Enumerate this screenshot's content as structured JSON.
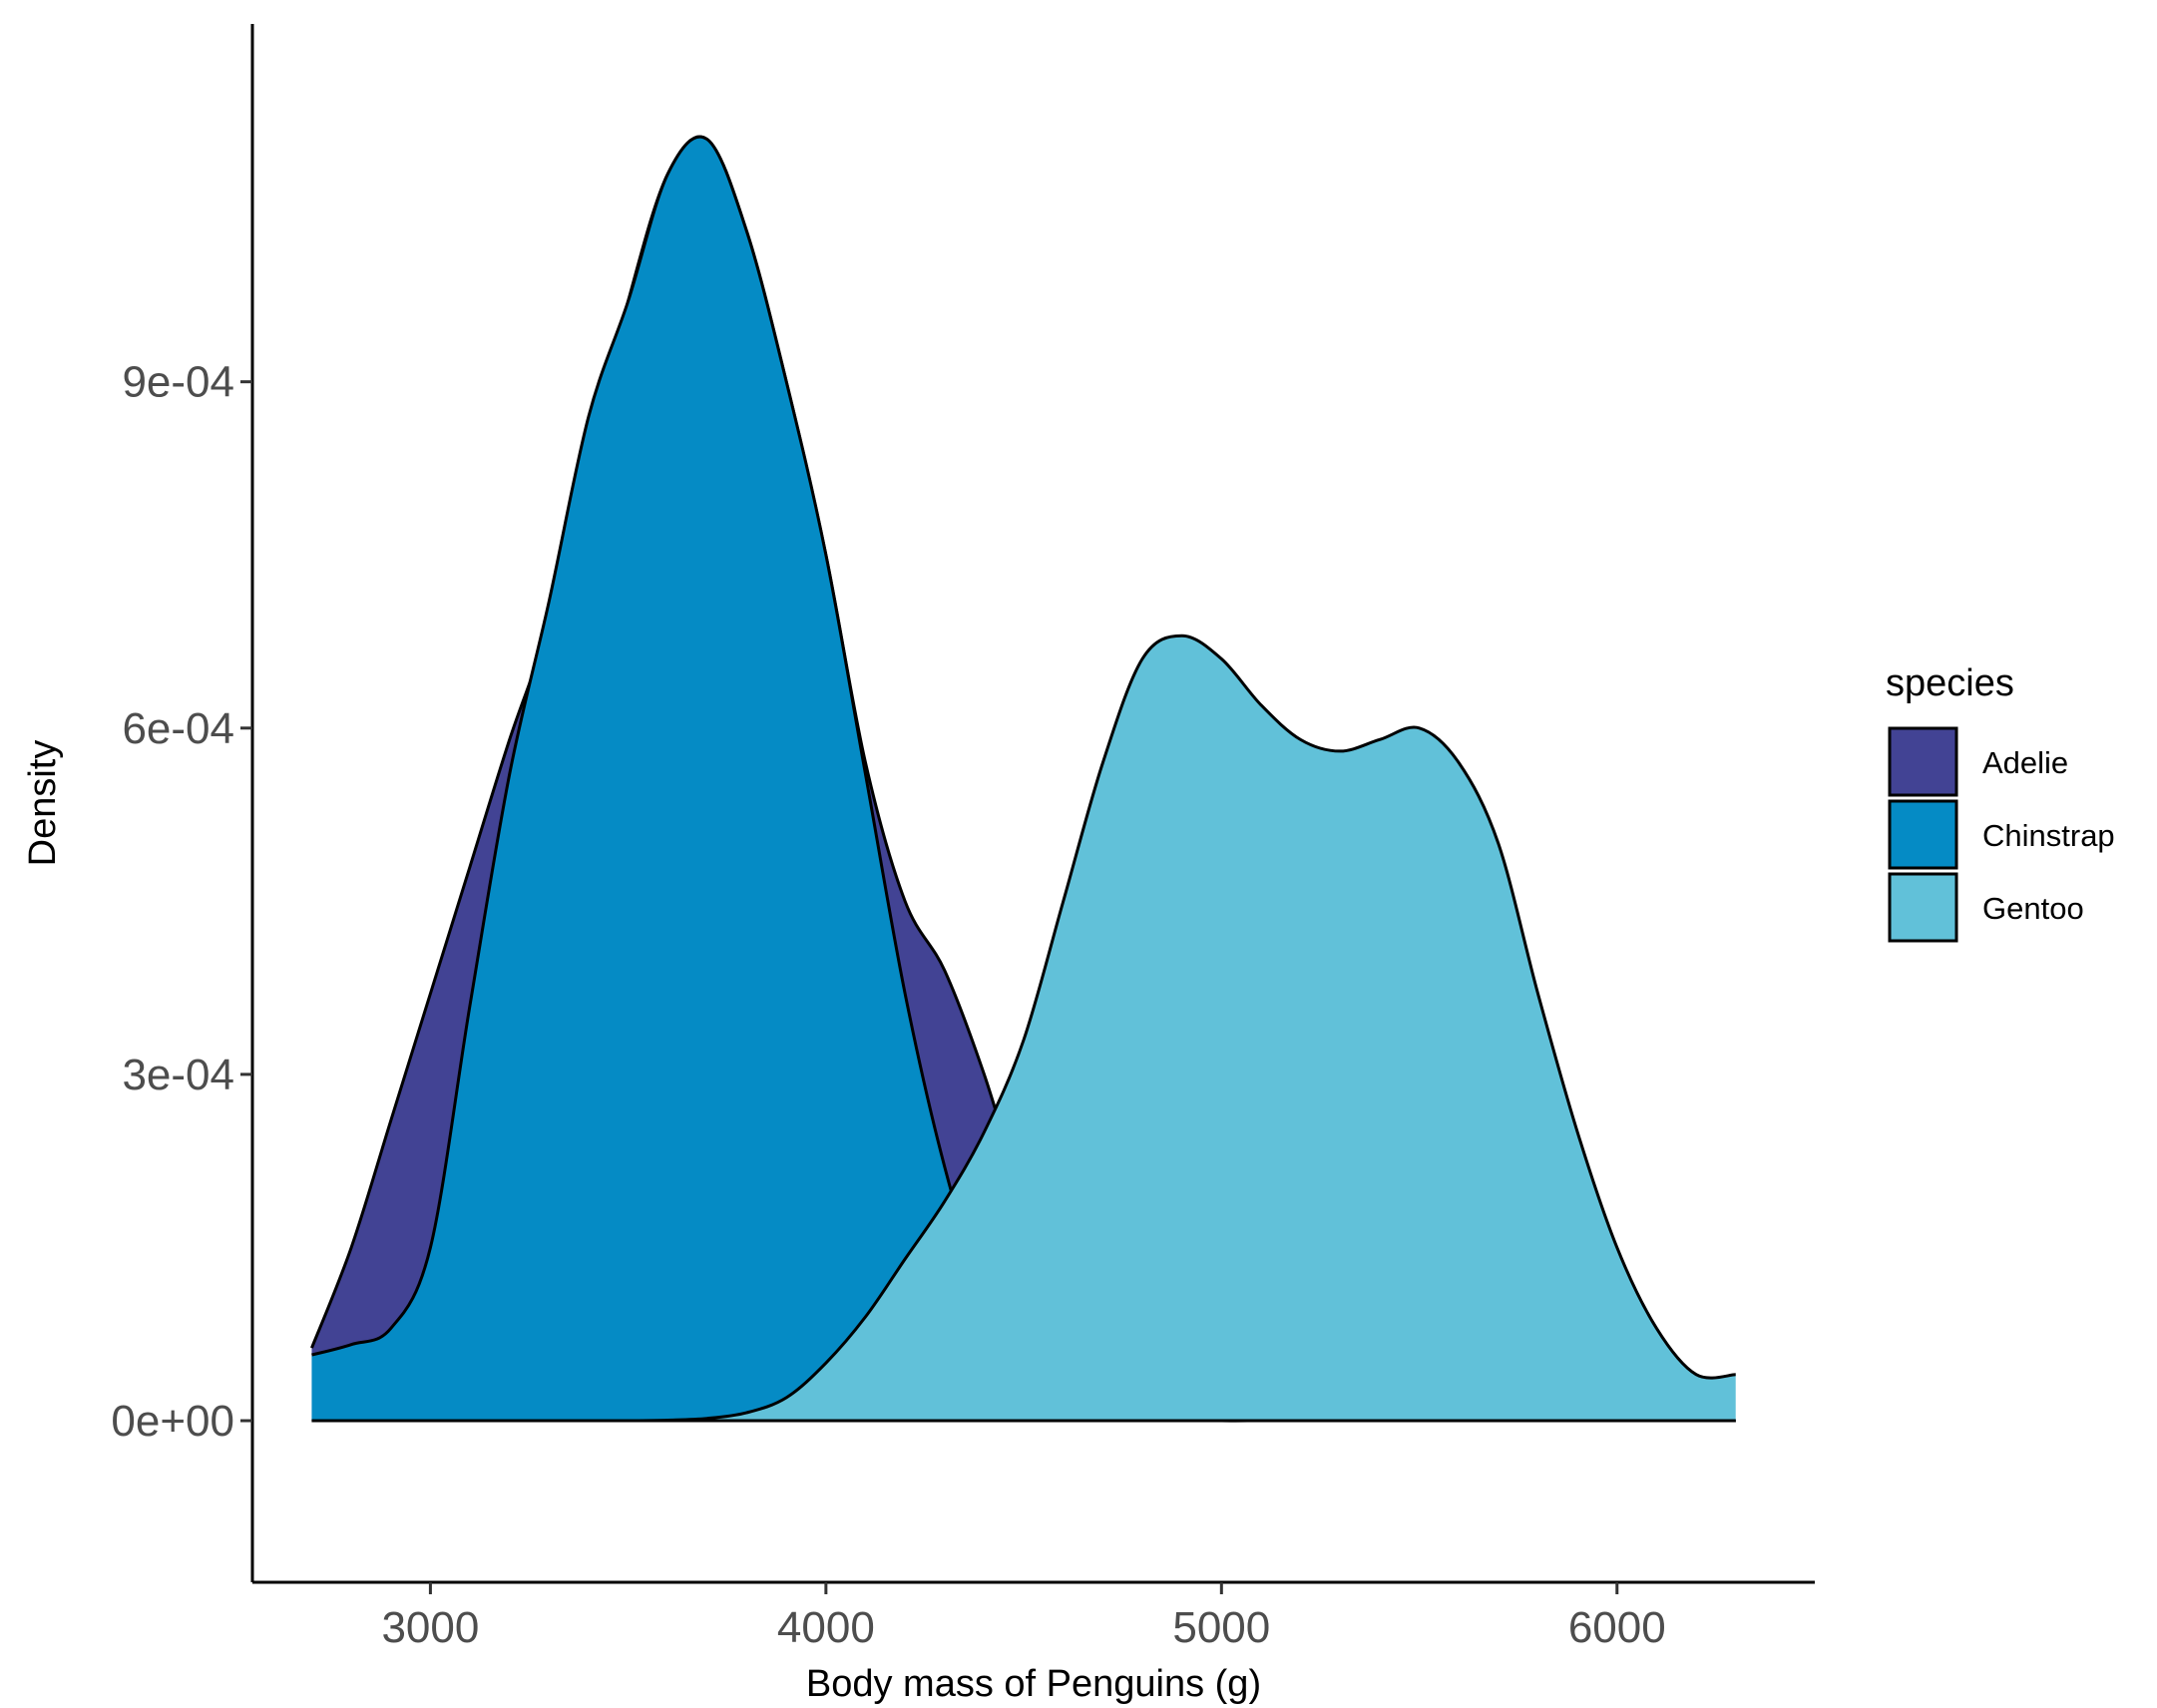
{
  "chart_data": {
    "type": "area",
    "subtype": "density",
    "title": "",
    "xlabel": "Body mass of Penguins (g)",
    "ylabel": "Density",
    "xlim": [
      2550,
      6500
    ],
    "ylim": [
      -0.00014,
      0.00121
    ],
    "x_ticks": [
      3000,
      4000,
      5000,
      6000
    ],
    "x_tick_labels": [
      "3000",
      "4000",
      "5000",
      "6000"
    ],
    "y_ticks": [
      0,
      0.0003,
      0.0006,
      0.0009
    ],
    "y_tick_labels": [
      "0e+00",
      "3e-04",
      "6e-04",
      "9e-04"
    ],
    "grid": false,
    "legend": {
      "title": "species",
      "position": "right"
    },
    "series": [
      {
        "name": "Adelie",
        "color": "#424394",
        "x": [
          2700,
          2800,
          2900,
          3000,
          3100,
          3200,
          3300,
          3400,
          3500,
          3600,
          3700,
          3800,
          3900,
          4000,
          4100,
          4200,
          4300,
          4400,
          4500,
          4600,
          4700,
          4800,
          4900,
          5000,
          5100,
          5200,
          5300,
          5400,
          5500,
          5600,
          5700,
          5800,
          5900,
          6000,
          6100,
          6200,
          6300
        ],
        "values": [
          6.3e-05,
          0.00015,
          0.00026,
          0.00037,
          0.00048,
          0.00059,
          0.00069,
          0.00083,
          0.00097,
          0.00108,
          0.00111,
          0.00103,
          0.0009,
          0.00075,
          0.00057,
          0.00045,
          0.00039,
          0.0003,
          0.00019,
          0.0001,
          4e-05,
          1.2e-05,
          3e-06,
          5e-07,
          1e-07,
          0,
          0,
          0,
          0,
          0,
          0,
          0,
          0,
          0,
          0,
          0,
          0
        ]
      },
      {
        "name": "Chinstrap",
        "color": "#058BC5",
        "x": [
          2700,
          2800,
          2900,
          3000,
          3100,
          3200,
          3300,
          3400,
          3500,
          3600,
          3700,
          3800,
          3900,
          4000,
          4100,
          4200,
          4300,
          4400,
          4500,
          4600,
          4700,
          4800,
          4900,
          5000,
          5100,
          5200,
          5300,
          5400,
          5500,
          5600,
          5700,
          5800,
          5900,
          6000,
          6100,
          6200,
          6300
        ],
        "values": [
          5.7e-05,
          6.6e-05,
          8e-05,
          0.00015,
          0.00036,
          0.00056,
          0.00071,
          0.00087,
          0.00097,
          0.00108,
          0.00111,
          0.00103,
          0.0009,
          0.00075,
          0.00056,
          0.00037,
          0.00022,
          0.00011,
          6e-05,
          3e-05,
          1e-05,
          3e-06,
          1e-06,
          0,
          0,
          0,
          0,
          0,
          0,
          0,
          0,
          0,
          0,
          0,
          0,
          0,
          0
        ]
      },
      {
        "name": "Gentoo",
        "color": "#61C1D9",
        "x": [
          2700,
          2800,
          2900,
          3000,
          3100,
          3200,
          3300,
          3400,
          3500,
          3600,
          3700,
          3800,
          3900,
          4000,
          4100,
          4200,
          4300,
          4400,
          4500,
          4600,
          4700,
          4800,
          4900,
          5000,
          5100,
          5200,
          5300,
          5400,
          5500,
          5600,
          5700,
          5800,
          5900,
          6000,
          6100,
          6200,
          6300
        ],
        "values": [
          0,
          0,
          0,
          0,
          0,
          0,
          0,
          0,
          0,
          5e-07,
          2e-06,
          7e-06,
          2e-05,
          5e-05,
          9e-05,
          0.00014,
          0.00019,
          0.00025,
          0.00033,
          0.00045,
          0.00057,
          0.00066,
          0.00068,
          0.00066,
          0.00062,
          0.00059,
          0.00058,
          0.00059,
          0.0006,
          0.00057,
          0.0005,
          0.00037,
          0.00025,
          0.00015,
          8e-05,
          4e-05,
          4e-05
        ]
      }
    ]
  }
}
